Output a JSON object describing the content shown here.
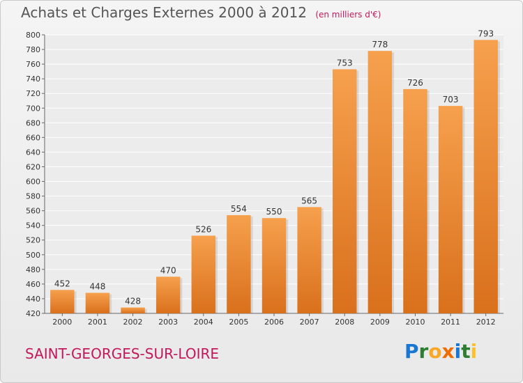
{
  "header": {
    "title": "Achats et Charges Externes 2000 à 2012",
    "subtitle": "(en milliers d'€)"
  },
  "footer": {
    "commune": "SAINT-GEORGES-SUR-LOIRE",
    "logo": [
      "P",
      "r",
      "o",
      "x",
      "i",
      "t",
      "i"
    ]
  },
  "colors": {
    "bar_light": "#f6a04d",
    "bar_dark": "#d9701c",
    "axis": "#666666",
    "grid": "#ffffff",
    "title": "#555555",
    "accent": "#c2185b",
    "logo": [
      "#1976d2",
      "#2e7d32",
      "#f9a825",
      "#ef6c00",
      "#1976d2",
      "#2e7d32",
      "#fbc02d"
    ]
  },
  "chart_data": {
    "type": "bar",
    "title": "Achats et Charges Externes 2000 à 2012",
    "categories": [
      "2000",
      "2001",
      "2002",
      "2003",
      "2004",
      "2005",
      "2006",
      "2007",
      "2008",
      "2009",
      "2010",
      "2011",
      "2012"
    ],
    "values": [
      452,
      448,
      428,
      470,
      526,
      554,
      550,
      565,
      753,
      778,
      726,
      703,
      793
    ],
    "ylim": [
      420,
      800
    ],
    "ytick_step": 20,
    "grid": true,
    "show_value_labels": true
  }
}
